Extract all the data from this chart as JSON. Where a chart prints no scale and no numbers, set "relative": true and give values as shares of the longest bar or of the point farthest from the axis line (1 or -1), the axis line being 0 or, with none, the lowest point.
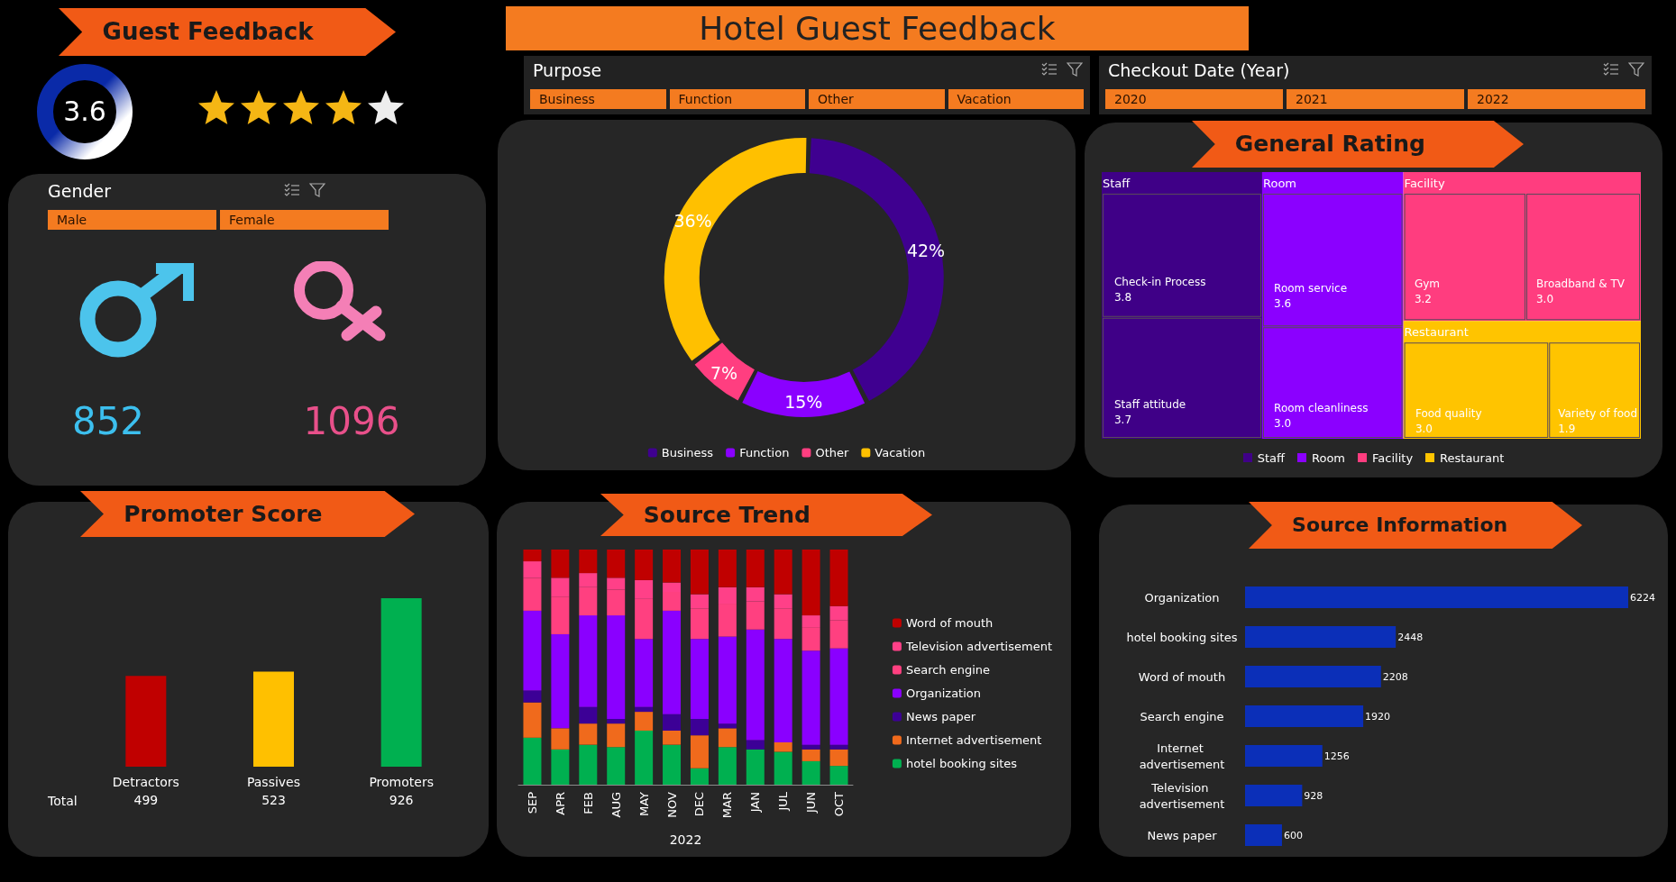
{
  "chart_data": [
    {
      "type": "other",
      "title": "Guest Feedback",
      "annotations": [
        "3.6"
      ]
    },
    {
      "type": "other",
      "title": "Hotel Guest Feedback"
    },
    {
      "type": "other",
      "title": "Purpose",
      "annotations": [
        "Business",
        "Function",
        "Other",
        "Vacation"
      ]
    },
    {
      "type": "other",
      "title": "Checkout Date (Year)",
      "annotations": [
        "2020",
        "2021",
        "2022"
      ]
    },
    {
      "type": "other",
      "title": "Gender",
      "annotations": [
        "Male",
        "Female",
        "852",
        "1096"
      ]
    },
    {
      "type": "donut",
      "categories": [
        "Business",
        "Function",
        "Other",
        "Vacation"
      ],
      "values": [
        42,
        15,
        7,
        36
      ],
      "value_labels": [
        "42%",
        "15%",
        "7%",
        "36%"
      ],
      "colors": [
        "#3f0090",
        "#8a00ff",
        "#ff3e80",
        "#ffc000"
      ],
      "legend": "bottom"
    },
    {
      "type": "other",
      "title": "General Rating",
      "categories": [
        "Check-in Process",
        "Staff attitude",
        "Room service",
        "Room cleanliness",
        "Gym",
        "Broadband & TV",
        "Food quality",
        "Variety of food"
      ],
      "legend": "bottom",
      "series": [
        {
          "name": "Staff",
          "color": "#3f0087",
          "values": [
            3.8,
            3.7,
            null,
            null,
            null,
            null,
            null,
            null
          ],
          "value_labels": [
            "3.8",
            "3.7",
            null,
            null,
            null,
            null,
            null,
            null
          ]
        },
        {
          "name": "Room",
          "color": "#8b00ff",
          "values": [
            null,
            null,
            3.6,
            3.0,
            null,
            null,
            null,
            null
          ],
          "value_labels": [
            null,
            null,
            "3.6",
            "3.0",
            null,
            null,
            null,
            null
          ]
        },
        {
          "name": "Facility",
          "color": "#ff3d7f",
          "values": [
            null,
            null,
            null,
            null,
            3.2,
            3.0,
            null,
            null
          ],
          "value_labels": [
            null,
            null,
            null,
            null,
            "3.2",
            "3.0",
            null,
            null
          ]
        },
        {
          "name": "Restaurant",
          "color": "#ffc400",
          "values": [
            null,
            null,
            null,
            null,
            null,
            null,
            3.0,
            1.9
          ],
          "value_labels": [
            null,
            null,
            null,
            null,
            null,
            null,
            "3.0",
            "1.9"
          ]
        }
      ]
    },
    {
      "type": "bar",
      "title": "Promoter Score",
      "categories": [
        "Detractors",
        "Passives",
        "Promoters"
      ],
      "values": [
        499,
        523,
        926
      ],
      "colors": [
        "#c00000",
        "#ffc000",
        "#00b050"
      ],
      "data_labels": true,
      "tick_labels": "x",
      "annotations": [
        "Total"
      ]
    },
    {
      "type": "bar",
      "title": "Source Trend",
      "stacked": true,
      "relative": true,
      "xlabel": "2022",
      "legend": "right",
      "categories": [
        "SEP",
        "APR",
        "FEB",
        "AUG",
        "MAY",
        "NOV",
        "DEC",
        "MAR",
        "JAN",
        "JUL",
        "JUN",
        "OCT"
      ],
      "series": [
        {
          "name": "hotel booking sites",
          "color": "#00b050",
          "values": [
            0.2,
            0.15,
            0.17,
            0.16,
            0.23,
            0.17,
            0.07,
            0.16,
            0.15,
            0.14,
            0.1,
            0.08
          ]
        },
        {
          "name": "Internet advertisement",
          "color": "#f06a1c",
          "values": [
            0.15,
            0.09,
            0.09,
            0.1,
            0.08,
            0.06,
            0.14,
            0.08,
            0,
            0.04,
            0.05,
            0.07
          ]
        },
        {
          "name": "News paper",
          "color": "#3c0096",
          "values": [
            0.05,
            0,
            0.07,
            0.02,
            0.02,
            0.07,
            0.07,
            0.02,
            0.04,
            0,
            0.02,
            0.02
          ]
        },
        {
          "name": "Organization",
          "color": "#8a00ff",
          "values": [
            0.34,
            0.4,
            0.39,
            0.44,
            0.29,
            0.44,
            0.34,
            0.37,
            0.47,
            0.44,
            0.4,
            0.41
          ]
        },
        {
          "name": "Search engine",
          "color": "#ff4080",
          "values": [
            0.14,
            0.16,
            0.12,
            0.11,
            0.17,
            0.08,
            0.13,
            0.14,
            0.12,
            0.13,
            0.1,
            0.12
          ]
        },
        {
          "name": "Television advertisement",
          "color": "#ff4088",
          "values": [
            0.07,
            0.08,
            0.06,
            0.05,
            0.08,
            0.04,
            0.06,
            0.07,
            0.06,
            0.06,
            0.05,
            0.06
          ]
        },
        {
          "name": "Word of mouth",
          "color": "#c00000",
          "values": [
            0.05,
            0.12,
            0.1,
            0.12,
            0.13,
            0.14,
            0.19,
            0.16,
            0.16,
            0.19,
            0.28,
            0.24
          ]
        }
      ]
    },
    {
      "type": "bar",
      "title": "Source Information",
      "orientation": "horizontal",
      "categories": [
        "Organization",
        "hotel booking sites",
        "Word of mouth",
        "Search engine",
        "Internet advertisement",
        "Television advertisement",
        "News paper"
      ],
      "values": [
        6224,
        2448,
        2208,
        1920,
        1256,
        928,
        600
      ],
      "color": "#0b2fb8",
      "data_labels": true,
      "tick_labels": "y"
    }
  ]
}
